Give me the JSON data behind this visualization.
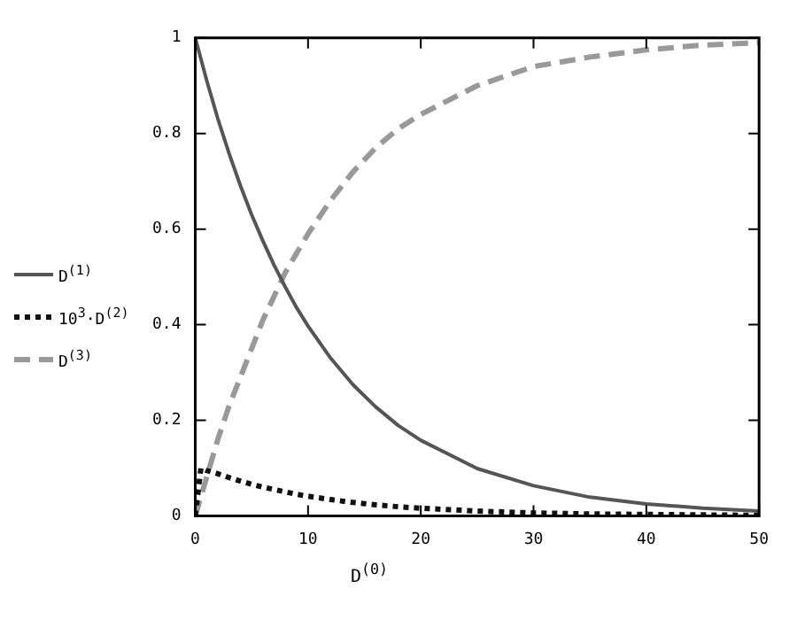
{
  "chart_data": {
    "type": "line",
    "xlabel": "D$^{(0)}$",
    "xlim": [
      0,
      50
    ],
    "xticks": [
      0,
      10,
      20,
      30,
      40,
      50
    ],
    "ylim": [
      0,
      1
    ],
    "yticks": [
      0,
      0.2,
      0.4,
      0.6,
      0.8,
      1
    ],
    "grid": false,
    "legend": "left",
    "marker": "none",
    "series": [
      {
        "name": "D$^{(1)}$",
        "color": "#555555",
        "line_style": "solid",
        "x": [
          0,
          1,
          2,
          3,
          4,
          5,
          6,
          7,
          8,
          9,
          10,
          12,
          14,
          16,
          18,
          20,
          25,
          30,
          35,
          40,
          45,
          50
        ],
        "values": [
          1,
          0.912,
          0.831,
          0.758,
          0.691,
          0.63,
          0.575,
          0.524,
          0.478,
          0.435,
          0.397,
          0.33,
          0.274,
          0.228,
          0.189,
          0.158,
          0.099,
          0.063,
          0.039,
          0.025,
          0.016,
          0.01
        ]
      },
      {
        "name": "10$^{3}$·D$^{(2)}$",
        "color": "#111111",
        "line_style": "dotted",
        "x": [
          0,
          0.5,
          1,
          2,
          3,
          4,
          5,
          6,
          7,
          8,
          9,
          10,
          12,
          14,
          16,
          18,
          20,
          25,
          30,
          35,
          40,
          45,
          50
        ],
        "values": [
          0,
          0.1,
          0.095,
          0.088,
          0.08,
          0.073,
          0.066,
          0.06,
          0.055,
          0.05,
          0.045,
          0.041,
          0.034,
          0.028,
          0.023,
          0.019,
          0.016,
          0.01,
          0.006,
          0.004,
          0.003,
          0.002,
          0.001
        ]
      },
      {
        "name": "D$^{(3)}$",
        "color": "#999999",
        "line_style": "dashed",
        "x": [
          0,
          1,
          2,
          3,
          4,
          5,
          6,
          7,
          8,
          9,
          10,
          12,
          14,
          16,
          18,
          20,
          25,
          30,
          35,
          40,
          45,
          50
        ],
        "values": [
          0,
          0.08,
          0.16,
          0.23,
          0.29,
          0.35,
          0.41,
          0.46,
          0.51,
          0.55,
          0.59,
          0.66,
          0.72,
          0.77,
          0.81,
          0.84,
          0.9,
          0.94,
          0.96,
          0.975,
          0.985,
          0.99
        ]
      }
    ]
  }
}
